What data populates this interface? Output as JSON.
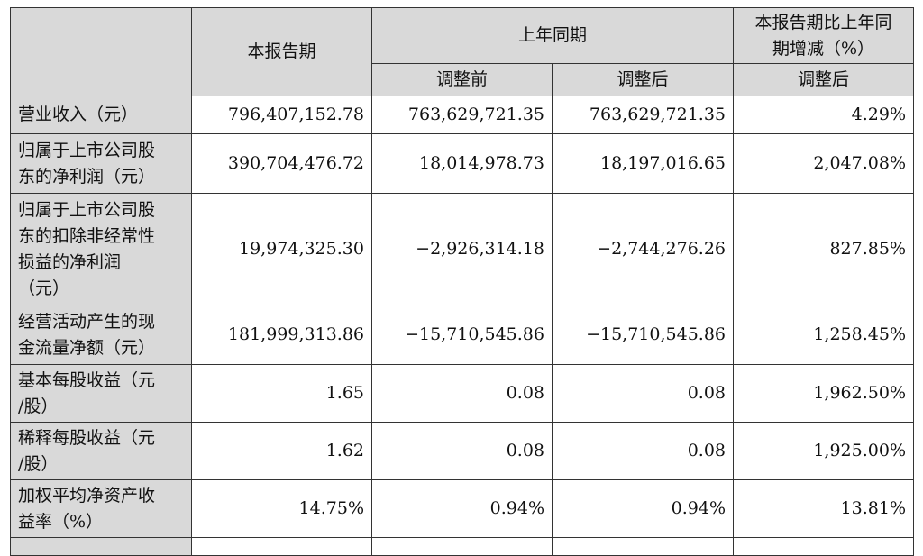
{
  "header": {
    "current_period": "本报告期",
    "prior_year_same_period": "上年同期",
    "change_line1": "本报告期比上年同",
    "change_line2": "期增减（%）",
    "before_adjustment": "调整前",
    "after_adjustment": "调整后",
    "after_adjustment_change": "调整后"
  },
  "rows": [
    {
      "label_lines": [
        "营业收入（元）"
      ],
      "current": "796,407,152.78",
      "before": "763,629,721.35",
      "after": "763,629,721.35",
      "change": "4.29%"
    },
    {
      "label_lines": [
        "归属于上市公司股",
        "东的净利润（元）"
      ],
      "current": "390,704,476.72",
      "before": "18,014,978.73",
      "after": "18,197,016.65",
      "change": "2,047.08%"
    },
    {
      "label_lines": [
        "归属于上市公司股",
        "东的扣除非经常性",
        "损益的净利润",
        "（元）"
      ],
      "current": "19,974,325.30",
      "before": "−2,926,314.18",
      "after": "−2,744,276.26",
      "change": "827.85%"
    },
    {
      "label_lines": [
        "经营活动产生的现",
        "金流量净额（元）"
      ],
      "current": "181,999,313.86",
      "before": "−15,710,545.86",
      "after": "−15,710,545.86",
      "change": "1,258.45%"
    },
    {
      "label_lines": [
        "基本每股收益（元",
        "/股）"
      ],
      "current": "1.65",
      "before": "0.08",
      "after": "0.08",
      "change": "1,962.50%"
    },
    {
      "label_lines": [
        "稀释每股收益（元",
        "/股）"
      ],
      "current": "1.62",
      "before": "0.08",
      "after": "0.08",
      "change": "1,925.00%"
    },
    {
      "label_lines": [
        "加权平均净资产收",
        "益率（%）"
      ],
      "current": "14.75%",
      "before": "0.94%",
      "after": "0.94%",
      "change": "13.81%"
    }
  ]
}
